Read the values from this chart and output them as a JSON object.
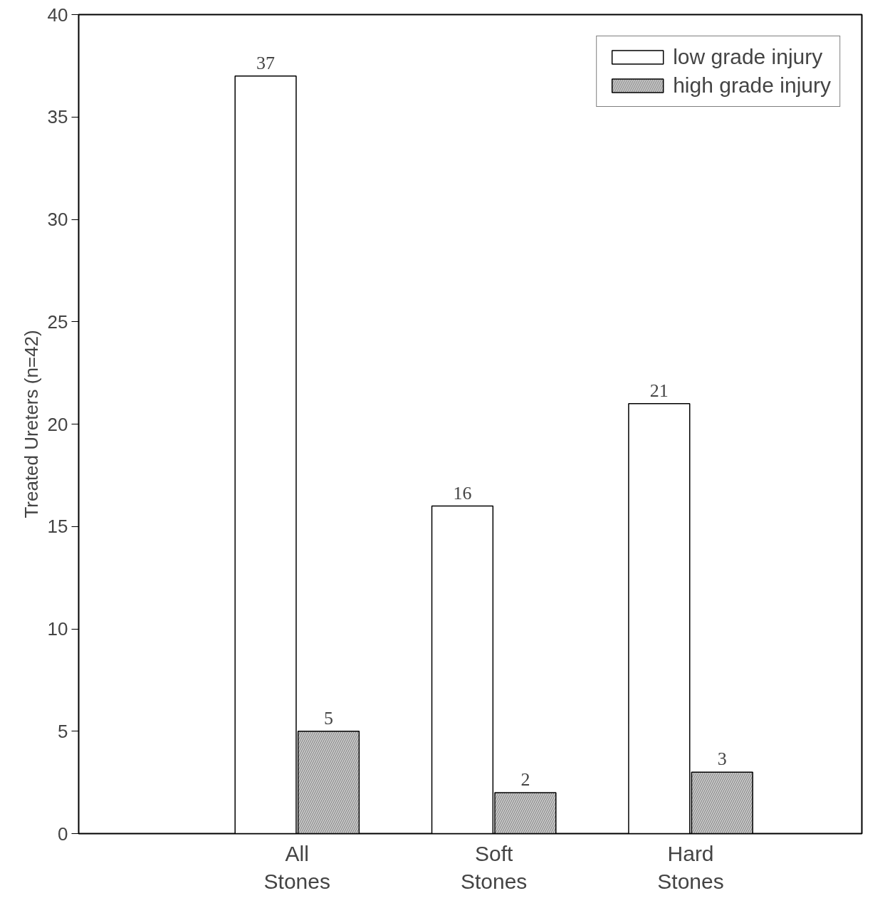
{
  "chart_data": {
    "type": "bar",
    "ylabel": "Treated Ureters (n=42)",
    "categories": [
      "All Stones",
      "Soft Stones",
      "Hard Stones"
    ],
    "series": [
      {
        "name": "low grade injury",
        "color": "#ffffff",
        "values": [
          37,
          16,
          21
        ]
      },
      {
        "name": "high grade injury",
        "color": "#c8c8c8",
        "values": [
          5,
          2,
          3
        ]
      }
    ],
    "ylim": [
      0,
      40
    ],
    "yticks": [
      0,
      5,
      10,
      15,
      20,
      25,
      30,
      35,
      40
    ],
    "data_labels": true,
    "legend": "top right",
    "grid": false
  }
}
